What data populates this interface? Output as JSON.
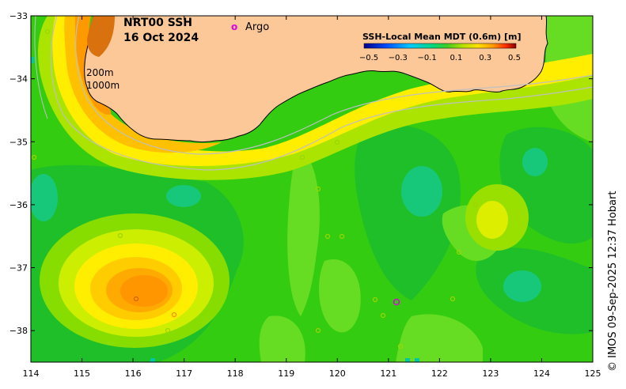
{
  "title": {
    "product": "NRT00 SSH",
    "date": "16 Oct 2024"
  },
  "legend": {
    "argo_symbol": "o",
    "argo_label": "Argo",
    "argo_color": "#e000e0",
    "colorbar_title": "SSH-Local Mean MDT (0.6m) [m]",
    "colorbar_ticks": [
      "−0.5",
      "−0.3",
      "−0.1",
      "0.1",
      "0.3",
      "0.5"
    ],
    "colorbar_colors": [
      "#00008b",
      "#0040ff",
      "#00b4ff",
      "#00d890",
      "#33cc33",
      "#b0e000",
      "#ffe000",
      "#ff9900",
      "#ff4000",
      "#8b0000"
    ]
  },
  "isobaths": {
    "label_200": "200m",
    "label_1000": "1000m"
  },
  "axes": {
    "x_ticks": [
      "114",
      "115",
      "116",
      "117",
      "118",
      "119",
      "120",
      "121",
      "122",
      "123",
      "124",
      "125"
    ],
    "y_ticks": [
      "−33",
      "−34",
      "−35",
      "−36",
      "−37",
      "−38"
    ],
    "lon_range": [
      114,
      125
    ],
    "lat_range": [
      -38.5,
      -33
    ]
  },
  "colors": {
    "land": "#fcc897",
    "ocean_base": "#33cc11",
    "coast": "#000000"
  },
  "credit": "© IMOS 09-Sep-2025 12:37 Hobart"
}
